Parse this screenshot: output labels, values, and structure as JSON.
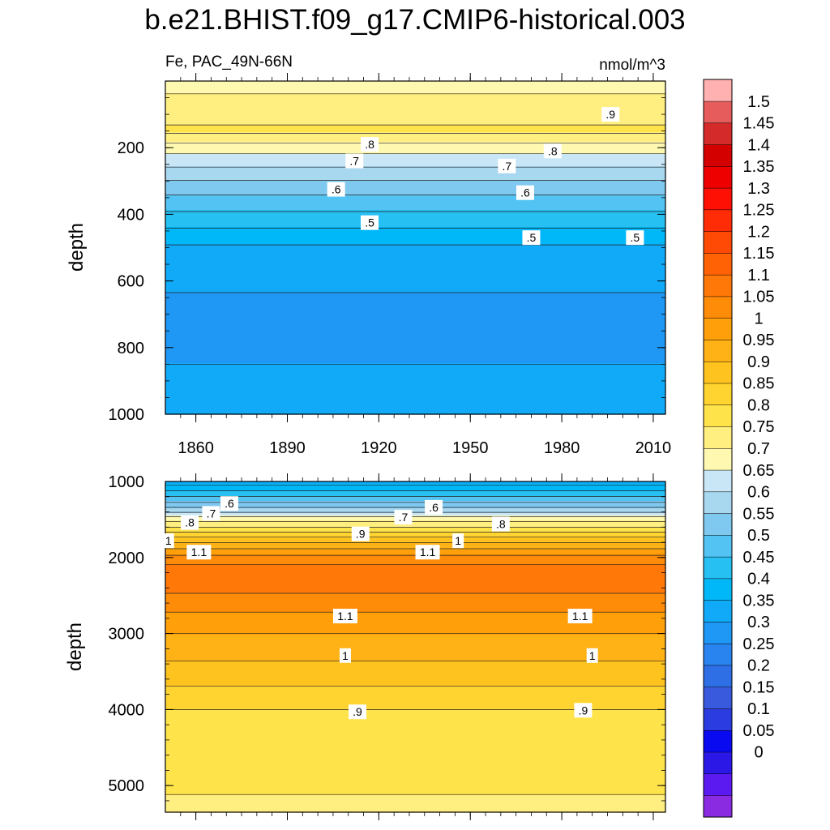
{
  "title": "b.e21.BHIST.f09_g17.CMIP6-historical.003",
  "colors": {
    "levels": [
      "#8a2be2",
      "#5a1af0",
      "#2c18e6",
      "#0a0af0",
      "#2b3ce0",
      "#3a5ade",
      "#2f6fe6",
      "#2a84f0",
      "#1e97f5",
      "#10aaf8",
      "#00b8f8",
      "#26c0f2",
      "#52c3f2",
      "#7fc8ef",
      "#a8d7f0",
      "#c8e6f5",
      "#fff8b0",
      "#ffee80",
      "#ffe34a",
      "#ffd430",
      "#ffc31f",
      "#ffb215",
      "#ffa00a",
      "#ff8c08",
      "#ff7808",
      "#ff6205",
      "#ff4a05",
      "#ff2c05",
      "#ff1005",
      "#ee0000",
      "#d40000",
      "#d42a2a",
      "#e65c5c",
      "#ffb0b0"
    ]
  },
  "colorbar": {
    "labels": [
      "1.5",
      "1.45",
      "1.4",
      "1.35",
      "1.3",
      "1.25",
      "1.2",
      "1.15",
      "1.1",
      "1.05",
      "1",
      "0.95",
      "0.9",
      "0.85",
      "0.8",
      "0.75",
      "0.7",
      "0.65",
      "0.6",
      "0.55",
      "0.5",
      "0.45",
      "0.4",
      "0.35",
      "0.3",
      "0.25",
      "0.2",
      "0.15",
      "0.1",
      "0.05",
      "0"
    ]
  },
  "chart_data": [
    {
      "type": "heatmap",
      "panel": "upper",
      "left_label": "Fe, PAC_49N-66N",
      "right_label": "nmol/m^3",
      "ylabel": "depth",
      "x_ticks": [
        "1860",
        "1890",
        "1920",
        "1950",
        "1980",
        "2010"
      ],
      "x_range": [
        1850,
        2014
      ],
      "y_ticks": [
        "200",
        "400",
        "600",
        "800",
        "1000"
      ],
      "y_range": [
        1000,
        0
      ],
      "y_reversed": true,
      "depth_profile": [
        {
          "depth": 0,
          "value": 0.78
        },
        {
          "depth": 150,
          "value": 0.86
        },
        {
          "depth": 210,
          "value": 0.76
        },
        {
          "depth": 280,
          "value": 0.67
        },
        {
          "depth": 340,
          "value": 0.6
        },
        {
          "depth": 420,
          "value": 0.52
        },
        {
          "depth": 500,
          "value": 0.44
        },
        {
          "depth": 700,
          "value": 0.38
        },
        {
          "depth": 1000,
          "value": 0.42
        }
      ],
      "contour_labels": [
        {
          "text": ".8",
          "year": 1917,
          "depth": 190
        },
        {
          "text": ".7",
          "year": 1912,
          "depth": 240
        },
        {
          "text": ".6",
          "year": 1906,
          "depth": 325
        },
        {
          "text": ".5",
          "year": 1917,
          "depth": 425
        },
        {
          "text": ".7",
          "year": 1962,
          "depth": 255
        },
        {
          "text": ".6",
          "year": 1968,
          "depth": 335
        },
        {
          "text": ".5",
          "year": 1970,
          "depth": 470
        },
        {
          "text": ".8",
          "year": 1977,
          "depth": 210
        },
        {
          "text": ".9",
          "year": 1996,
          "depth": 100
        },
        {
          "text": ".5",
          "year": 2004,
          "depth": 470
        }
      ]
    },
    {
      "type": "heatmap",
      "panel": "lower",
      "ylabel": "depth",
      "y_ticks": [
        "1000",
        "2000",
        "3000",
        "4000",
        "5000"
      ],
      "y_range": [
        5350,
        1000
      ],
      "y_reversed": true,
      "depth_profile": [
        {
          "depth": 1000,
          "value": 0.42
        },
        {
          "depth": 1300,
          "value": 0.62
        },
        {
          "depth": 1500,
          "value": 0.78
        },
        {
          "depth": 1800,
          "value": 1.0
        },
        {
          "depth": 2000,
          "value": 1.12
        },
        {
          "depth": 2250,
          "value": 1.2
        },
        {
          "depth": 2600,
          "value": 1.12
        },
        {
          "depth": 3000,
          "value": 1.05
        },
        {
          "depth": 3500,
          "value": 0.98
        },
        {
          "depth": 4000,
          "value": 0.9
        },
        {
          "depth": 5000,
          "value": 0.86
        },
        {
          "depth": 5350,
          "value": 0.83
        }
      ],
      "contour_labels": [
        {
          "text": ".6",
          "year": 1871,
          "depth": 1290
        },
        {
          "text": ".7",
          "year": 1865,
          "depth": 1420
        },
        {
          "text": ".8",
          "year": 1858,
          "depth": 1540
        },
        {
          "text": "1",
          "year": 1851,
          "depth": 1780
        },
        {
          "text": "1.1",
          "year": 1861,
          "depth": 1930
        },
        {
          "text": ".9",
          "year": 1914,
          "depth": 1690
        },
        {
          "text": ".7",
          "year": 1928,
          "depth": 1470
        },
        {
          "text": ".6",
          "year": 1938,
          "depth": 1340
        },
        {
          "text": ".8",
          "year": 1960,
          "depth": 1560
        },
        {
          "text": "1",
          "year": 1946,
          "depth": 1780
        },
        {
          "text": "1.1",
          "year": 1936,
          "depth": 1930
        },
        {
          "text": "1.1",
          "year": 1909,
          "depth": 2770
        },
        {
          "text": "1.1",
          "year": 1986,
          "depth": 2770
        },
        {
          "text": "1",
          "year": 1909,
          "depth": 3290
        },
        {
          "text": "1",
          "year": 1990,
          "depth": 3290
        },
        {
          "text": ".9",
          "year": 1913,
          "depth": 4030
        },
        {
          "text": ".9",
          "year": 1987,
          "depth": 4010
        }
      ]
    }
  ]
}
